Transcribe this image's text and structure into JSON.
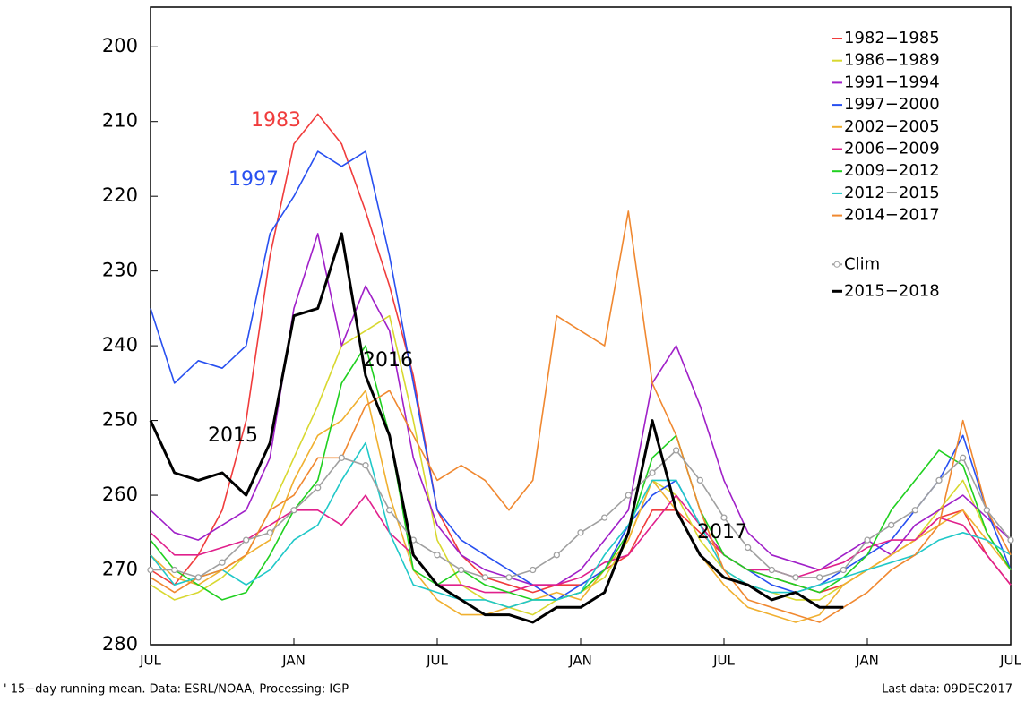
{
  "chart_data": {
    "type": "line",
    "x": [
      0,
      1,
      2,
      3,
      4,
      5,
      6,
      7,
      8,
      9,
      10,
      11,
      12,
      13,
      14,
      15,
      16,
      17,
      18,
      19,
      20,
      21,
      22,
      23,
      24,
      25,
      26,
      27,
      28,
      29,
      30,
      31,
      32,
      33,
      34,
      35,
      36
    ],
    "xlim": [
      0,
      36
    ],
    "xticks": [
      {
        "value": 0,
        "label": "JUL"
      },
      {
        "value": 6,
        "label": "JAN"
      },
      {
        "value": 12,
        "label": "JUL"
      },
      {
        "value": 18,
        "label": "JAN"
      },
      {
        "value": 24,
        "label": "JUL"
      },
      {
        "value": 30,
        "label": "JAN"
      },
      {
        "value": 36,
        "label": "JUL"
      }
    ],
    "ylim": [
      280,
      194.7
    ],
    "yticks": [
      200,
      210,
      220,
      230,
      240,
      250,
      260,
      270,
      280
    ],
    "legend": "top-right",
    "series": [
      {
        "name": "1982−1985",
        "color": "#f03c3c",
        "values": [
          270,
          272,
          268,
          262,
          250,
          228,
          213,
          209,
          213,
          222,
          232,
          244,
          262,
          268,
          271,
          272,
          273,
          272,
          272,
          270,
          268,
          262,
          262,
          265,
          268,
          270,
          271,
          272,
          273,
          272,
          270,
          268,
          266,
          263,
          262,
          268,
          272
        ]
      },
      {
        "name": "1986−1989",
        "color": "#d8d830",
        "values": [
          272,
          274,
          273,
          271,
          268,
          262,
          255,
          248,
          240,
          238,
          236,
          250,
          266,
          272,
          274,
          275,
          276,
          274,
          273,
          271,
          266,
          258,
          260,
          266,
          270,
          272,
          273,
          274,
          274,
          272,
          270,
          268,
          266,
          262,
          258,
          265,
          270
        ]
      },
      {
        "name": "1991−1994",
        "color": "#a020c8",
        "values": [
          262,
          265,
          266,
          264,
          262,
          255,
          235,
          225,
          240,
          232,
          238,
          255,
          264,
          268,
          270,
          271,
          272,
          272,
          270,
          266,
          262,
          245,
          240,
          248,
          258,
          265,
          268,
          269,
          270,
          268,
          266,
          268,
          264,
          262,
          260,
          263,
          266
        ]
      },
      {
        "name": "1997−2000",
        "color": "#2850f0",
        "values": [
          235,
          245,
          242,
          243,
          240,
          225,
          220,
          214,
          216,
          214,
          228,
          245,
          262,
          266,
          268,
          270,
          272,
          274,
          272,
          270,
          264,
          260,
          258,
          264,
          268,
          270,
          272,
          273,
          272,
          270,
          268,
          266,
          262,
          258,
          252,
          262,
          270
        ]
      },
      {
        "name": "2002−2005",
        "color": "#f0b030",
        "values": [
          268,
          271,
          272,
          270,
          268,
          266,
          258,
          252,
          250,
          246,
          260,
          270,
          274,
          276,
          276,
          275,
          274,
          273,
          274,
          270,
          266,
          258,
          262,
          268,
          272,
          275,
          276,
          277,
          276,
          272,
          270,
          268,
          266,
          264,
          262,
          266,
          270
        ]
      },
      {
        "name": "2006−2009",
        "color": "#e0208c",
        "values": [
          265,
          268,
          268,
          267,
          266,
          264,
          262,
          262,
          264,
          260,
          265,
          268,
          272,
          272,
          273,
          273,
          272,
          272,
          271,
          269,
          268,
          264,
          260,
          264,
          268,
          270,
          270,
          271,
          270,
          269,
          267,
          266,
          266,
          263,
          264,
          268,
          272
        ]
      },
      {
        "name": "2009−2012",
        "color": "#20d020",
        "values": [
          266,
          270,
          272,
          274,
          273,
          268,
          262,
          258,
          245,
          240,
          252,
          270,
          272,
          270,
          272,
          273,
          274,
          274,
          273,
          270,
          265,
          255,
          252,
          262,
          268,
          270,
          271,
          272,
          273,
          271,
          268,
          262,
          258,
          254,
          256,
          265,
          270
        ]
      },
      {
        "name": "2012−2015",
        "color": "#20c8c8",
        "values": [
          268,
          272,
          271,
          270,
          272,
          270,
          266,
          264,
          258,
          253,
          265,
          272,
          273,
          274,
          274,
          275,
          274,
          274,
          273,
          268,
          264,
          258,
          258,
          264,
          270,
          272,
          273,
          273,
          272,
          271,
          270,
          269,
          268,
          266,
          265,
          266,
          268
        ]
      },
      {
        "name": "2014−2017",
        "color": "#f08830",
        "values": [
          271,
          273,
          271,
          270,
          268,
          262,
          260,
          255,
          255,
          248,
          246,
          252,
          258,
          256,
          258,
          262,
          258,
          236,
          238,
          240,
          222,
          245,
          252,
          262,
          270,
          274,
          275,
          276,
          277,
          275,
          273,
          270,
          268,
          264,
          250,
          262,
          268
        ]
      },
      {
        "name": "Clim",
        "color": "#a0a0a0",
        "markers": true,
        "values": [
          270,
          270,
          271,
          269,
          266,
          265,
          262,
          259,
          255,
          256,
          262,
          266,
          268,
          270,
          271,
          271,
          270,
          268,
          265,
          263,
          260,
          257,
          254,
          258,
          263,
          267,
          270,
          271,
          271,
          270,
          266,
          264,
          262,
          258,
          255,
          262,
          266
        ]
      },
      {
        "name": "2015−2018",
        "color": "#000000",
        "bold": true,
        "values": [
          250,
          257,
          258,
          257,
          260,
          253,
          236,
          235,
          225,
          244,
          252,
          268,
          272,
          274,
          276,
          276,
          277,
          275,
          275,
          273,
          265,
          250,
          262,
          268,
          271,
          272,
          274,
          273,
          275,
          275,
          null,
          null,
          null,
          null,
          null,
          null,
          null
        ]
      }
    ],
    "annotations": [
      {
        "text": "1983",
        "color": "#f03c3c"
      },
      {
        "text": "1997",
        "color": "#2850f0"
      },
      {
        "text": "2016",
        "color": "#000000"
      },
      {
        "text": "2015",
        "color": "#000000"
      },
      {
        "text": "2017",
        "color": "#000000"
      }
    ],
    "footnote": "' 15−day running mean. Data: ESRL/NOAA, Processing: IGP",
    "last_data": "Last data: 09DEC2017"
  }
}
